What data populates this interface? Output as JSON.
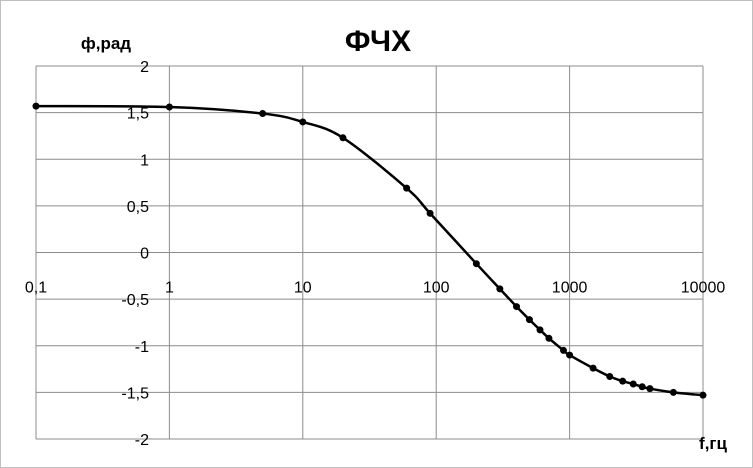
{
  "chart_data": {
    "type": "scatter",
    "title": "ФЧХ",
    "xlabel": "f,гц",
    "ylabel": "ф,рад",
    "x_scale": "log",
    "xlim": [
      0.1,
      10000
    ],
    "ylim": [
      -2,
      2
    ],
    "x_tick_labels": [
      "0,1",
      "1",
      "10",
      "100",
      "1000",
      "10000"
    ],
    "x_tick_values": [
      0.1,
      1,
      10,
      100,
      1000,
      10000
    ],
    "y_tick_labels": [
      "2",
      "1,5",
      "1",
      "0,5",
      "0",
      "-0,5",
      "-1",
      "-1,5",
      "-2"
    ],
    "y_tick_values": [
      2,
      1.5,
      1,
      0.5,
      0,
      -0.5,
      -1,
      -1.5,
      -2
    ],
    "grid": true,
    "legend": "none",
    "line_color": "#000000",
    "series": [
      {
        "x": [
          0.1,
          1,
          5,
          10,
          20,
          60,
          90,
          200,
          300,
          400,
          500,
          600,
          700,
          900,
          1000,
          1500,
          2000,
          2500,
          3000,
          3500,
          4000,
          6000,
          10000
        ],
        "y": [
          1.57,
          1.56,
          1.49,
          1.4,
          1.23,
          0.69,
          0.42,
          -0.12,
          -0.39,
          -0.58,
          -0.72,
          -0.83,
          -0.92,
          -1.05,
          -1.1,
          -1.24,
          -1.33,
          -1.38,
          -1.41,
          -1.44,
          -1.46,
          -1.5,
          -1.53
        ]
      }
    ]
  }
}
